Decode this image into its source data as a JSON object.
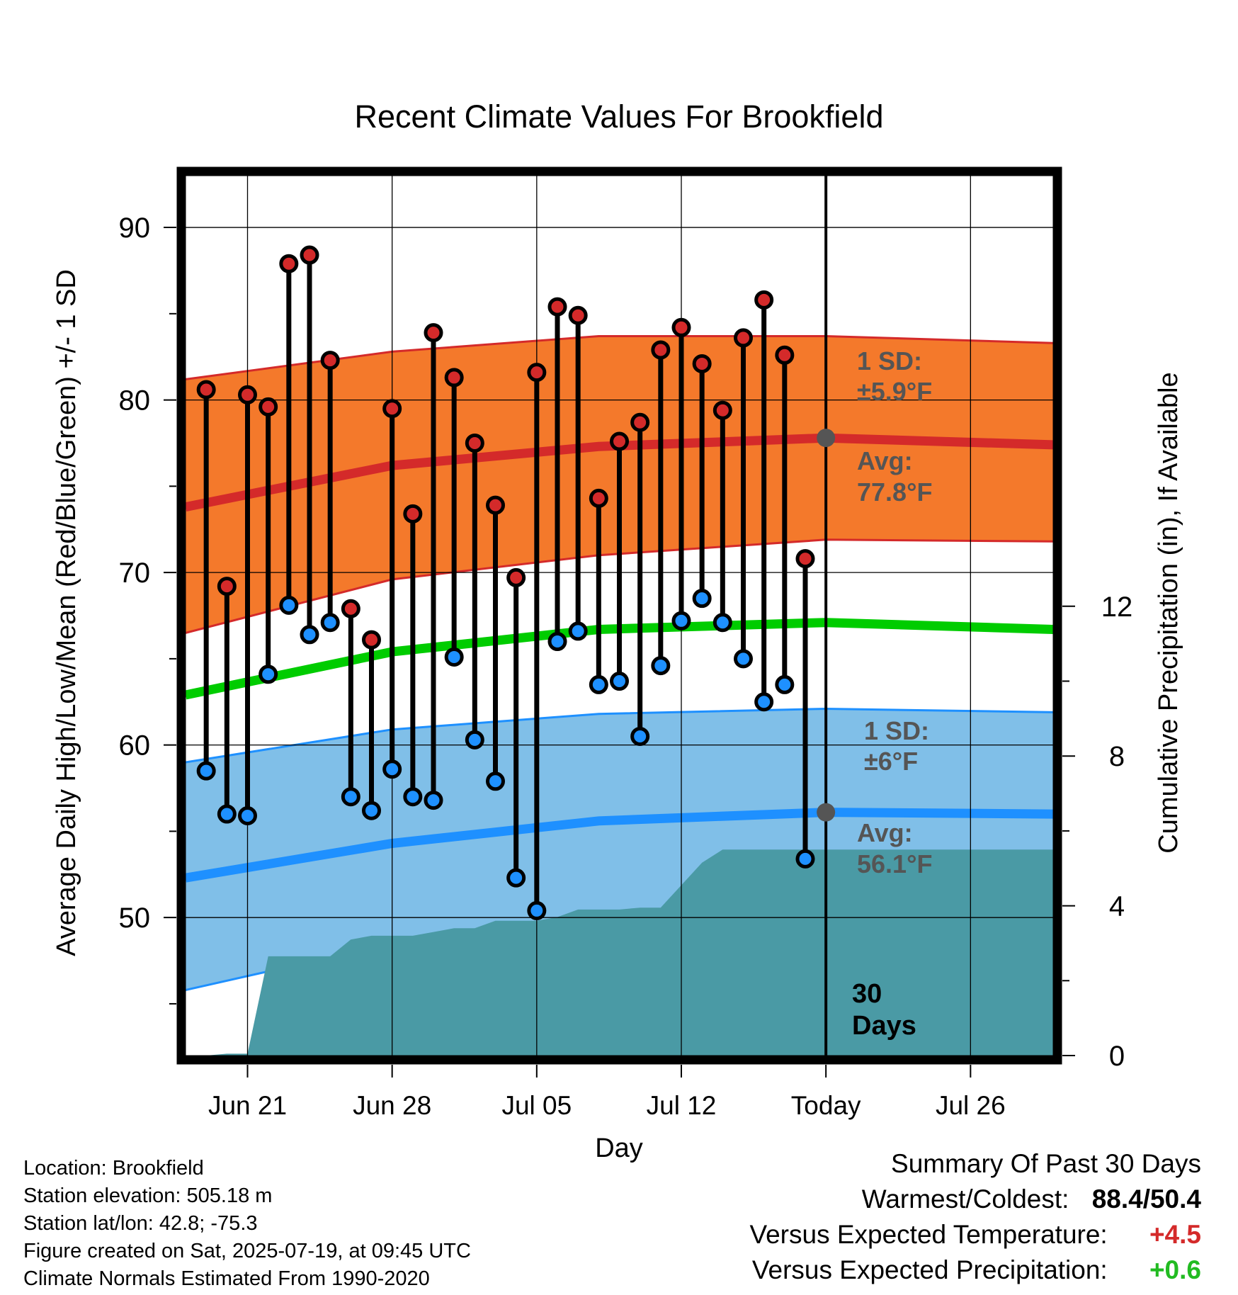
{
  "chart_data": {
    "type": "line",
    "title": "Recent Climate Values For Brookfield",
    "xlabel": "Day",
    "ylabel": "Average Daily High/Low/Mean (Red/Blue/Green) +/- 1 SD",
    "y2label": "Cumulative Precipitation (in), If Available",
    "ylim": [
      42,
      93
    ],
    "y2lim": [
      0,
      23.5
    ],
    "yticks": [
      50,
      60,
      70,
      80,
      90
    ],
    "y2ticks": [
      0,
      4,
      8,
      12
    ],
    "x_range": [
      "Jun 18",
      "Jul 30"
    ],
    "x_tick_labels": [
      {
        "date": "Jun 21",
        "label": "Jun 21"
      },
      {
        "date": "Jun 28",
        "label": "Jun 28"
      },
      {
        "date": "Jul 05",
        "label": "Jul 05"
      },
      {
        "date": "Jul 12",
        "label": "Jul 12"
      },
      {
        "date": "Jul 19",
        "label": "Today"
      },
      {
        "date": "Jul 26",
        "label": "Jul 26"
      }
    ],
    "today": "Jul 19",
    "grid": true,
    "daily_observations": {
      "dates": [
        "Jun 19",
        "Jun 20",
        "Jun 21",
        "Jun 22",
        "Jun 23",
        "Jun 24",
        "Jun 25",
        "Jun 26",
        "Jun 27",
        "Jun 28",
        "Jun 29",
        "Jun 30",
        "Jul 01",
        "Jul 02",
        "Jul 03",
        "Jul 04",
        "Jul 05",
        "Jul 06",
        "Jul 07",
        "Jul 08",
        "Jul 09",
        "Jul 10",
        "Jul 11",
        "Jul 12",
        "Jul 13",
        "Jul 14",
        "Jul 15",
        "Jul 16",
        "Jul 17",
        "Jul 18"
      ],
      "high": [
        80.6,
        69.2,
        80.3,
        79.6,
        87.9,
        88.4,
        82.3,
        67.9,
        66.1,
        79.5,
        73.4,
        83.9,
        81.3,
        77.5,
        73.9,
        69.7,
        81.6,
        85.4,
        84.9,
        74.3,
        77.6,
        78.7,
        82.9,
        84.2,
        82.1,
        79.4,
        83.6,
        85.8,
        82.6,
        70.8
      ],
      "low": [
        58.5,
        56.0,
        55.9,
        64.1,
        68.1,
        66.4,
        67.1,
        57.0,
        56.2,
        58.6,
        57.0,
        56.8,
        65.1,
        60.3,
        57.9,
        52.3,
        50.4,
        66.0,
        66.6,
        63.5,
        63.7,
        60.5,
        64.6,
        67.2,
        68.5,
        67.1,
        65.0,
        62.5,
        63.5,
        53.4
      ],
      "high_color": "#d42a2a",
      "low_color": "#1e90ff"
    },
    "normal_high": {
      "name": "Avg",
      "mean_x": [
        "Jun 18",
        "Jun 28",
        "Jul 08",
        "Jul 19",
        "Jul 30"
      ],
      "mean": [
        73.8,
        76.2,
        77.3,
        77.8,
        77.4
      ],
      "sd_upper": [
        81.2,
        82.8,
        83.7,
        83.7,
        83.3
      ],
      "sd_lower": [
        66.5,
        69.6,
        71.0,
        71.9,
        71.8
      ],
      "line_color": "#d42a2a",
      "band_color": "#f4792b"
    },
    "normal_low": {
      "name": "Avg",
      "mean_x": [
        "Jun 18",
        "Jun 28",
        "Jul 08",
        "Jul 19",
        "Jul 30"
      ],
      "mean": [
        52.3,
        54.3,
        55.6,
        56.1,
        56.0
      ],
      "sd_upper": [
        59.0,
        60.9,
        61.8,
        62.1,
        61.9
      ],
      "sd_lower": [
        45.8,
        48.5,
        49.8,
        50.2,
        50.0
      ],
      "line_color": "#1e90ff",
      "band_color": "#80bfe8"
    },
    "normal_mean": {
      "mean_x": [
        "Jun 18",
        "Jun 28",
        "Jul 08",
        "Jul 19",
        "Jul 30"
      ],
      "mean": [
        62.9,
        65.4,
        66.7,
        67.1,
        66.7
      ],
      "line_color": "#00cc00"
    },
    "cumulative_precipitation": {
      "dates": [
        "Jun 18",
        "Jun 19",
        "Jun 20",
        "Jun 21",
        "Jun 22",
        "Jun 23",
        "Jun 24",
        "Jun 25",
        "Jun 26",
        "Jun 27",
        "Jun 28",
        "Jun 29",
        "Jun 30",
        "Jul 01",
        "Jul 02",
        "Jul 03",
        "Jul 04",
        "Jul 05",
        "Jul 06",
        "Jul 07",
        "Jul 08",
        "Jul 09",
        "Jul 10",
        "Jul 11",
        "Jul 12",
        "Jul 13",
        "Jul 14",
        "Jul 15",
        "Jul 16",
        "Jul 17",
        "Jul 18",
        "Jul 19",
        "Jul 30"
      ],
      "values": [
        0.0,
        0.0,
        0.05,
        0.05,
        2.65,
        2.65,
        2.65,
        2.65,
        3.1,
        3.2,
        3.2,
        3.2,
        3.3,
        3.4,
        3.4,
        3.6,
        3.6,
        3.6,
        3.7,
        3.9,
        3.9,
        3.9,
        3.95,
        3.95,
        4.55,
        5.15,
        5.5,
        5.5,
        5.5,
        5.5,
        5.5,
        5.5,
        5.5
      ],
      "color": "#4a9aa5"
    },
    "annotations": {
      "high_sd_label": "1 SD:",
      "high_sd_value": "±5.9°F",
      "high_avg_label": "Avg:",
      "high_avg_value": "77.8°F",
      "low_sd_label": "1 SD:",
      "low_sd_value": "±6°F",
      "low_avg_label": "Avg:",
      "low_avg_value": "56.1°F",
      "days_number": "30",
      "days_word": "Days"
    }
  },
  "metadata": {
    "location": "Location: Brookfield",
    "elevation": "Station elevation: 505.18 m",
    "latlon": "Station lat/lon: 42.8; -75.3",
    "created": "Figure created on Sat, 2025-07-19, at 09:45 UTC",
    "normals": "Climate Normals Estimated From 1990-2020"
  },
  "summary": {
    "title": "Summary Of Past 30 Days",
    "warm_cold_label": "Warmest/Coldest:",
    "warm_cold_value": "88.4/50.4",
    "temp_label": "Versus Expected Temperature:",
    "temp_value": "+4.5",
    "temp_color": "#d42a2a",
    "precip_label": "Versus Expected Precipitation:",
    "precip_value": "+0.6",
    "precip_color": "#22bb22"
  }
}
